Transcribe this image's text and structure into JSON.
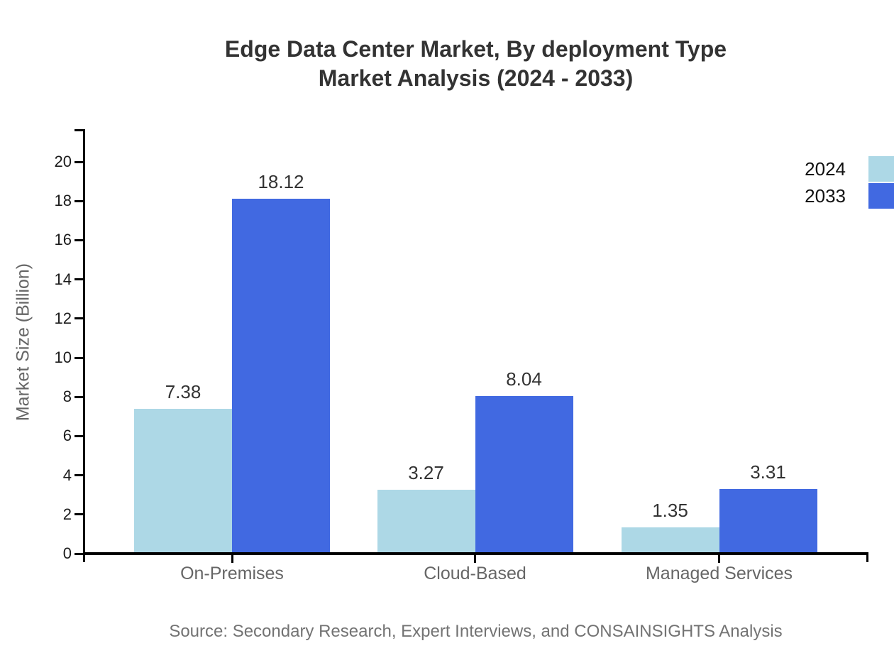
{
  "title": {
    "line1": "Edge Data Center Market, By deployment Type",
    "line2": "Market Analysis (2024 - 2033)"
  },
  "source": "Source: Secondary Research, Expert Interviews, and CONSAINSIGHTS Analysis",
  "chart_data": {
    "type": "bar",
    "categories": [
      "On-Premises",
      "Cloud-Based",
      "Managed Services"
    ],
    "series": [
      {
        "name": "2024",
        "color": "#ADD8E6",
        "values": [
          7.38,
          3.27,
          1.35
        ]
      },
      {
        "name": "2033",
        "color": "#4169E1",
        "values": [
          18.12,
          8.04,
          3.31
        ]
      }
    ],
    "title": "Edge Data Center Market, By deployment Type Market Analysis (2024 - 2033)",
    "xlabel": "",
    "ylabel": "Market Size (Billion)",
    "ylim": [
      0,
      20
    ],
    "ytick_step": 2,
    "grid": false,
    "legend_position": "top-right",
    "value_labels": true,
    "axis_color": "#000000"
  }
}
